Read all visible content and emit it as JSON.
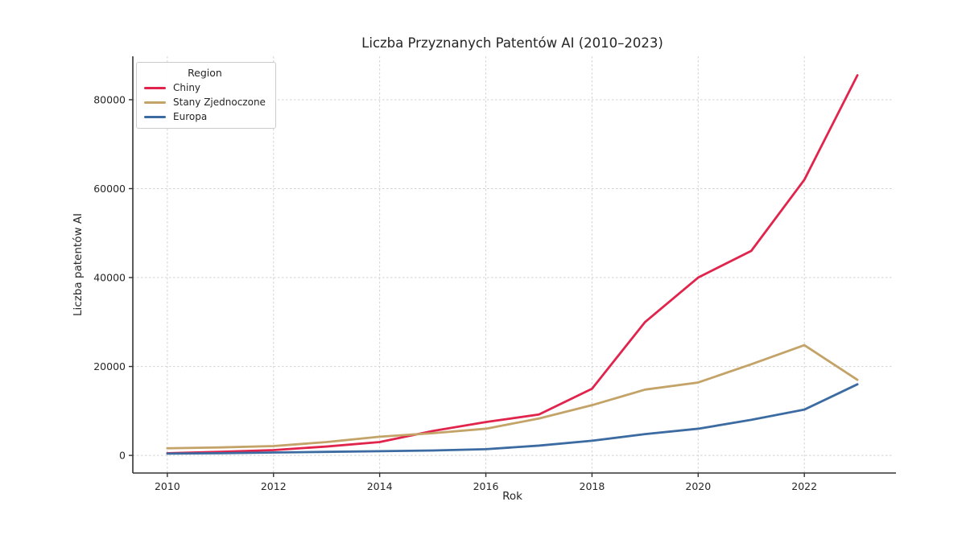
{
  "chart_data": {
    "type": "line",
    "title": "Liczba Przyznanych Patentów AI (2010–2023)",
    "xlabel": "Rok",
    "ylabel": "Liczba patentów AI",
    "legend_title": "Region",
    "legend_position": "upper left",
    "grid": true,
    "x": [
      2010,
      2011,
      2012,
      2013,
      2014,
      2015,
      2016,
      2017,
      2018,
      2019,
      2020,
      2021,
      2022,
      2023
    ],
    "series": [
      {
        "name": "Chiny",
        "color": "#e0244c",
        "values": [
          500,
          800,
          1200,
          2000,
          3000,
          5500,
          7500,
          9200,
          15000,
          30000,
          40000,
          46000,
          62000,
          85500
        ]
      },
      {
        "name": "Stany Zjednoczone",
        "color": "#c3a367",
        "values": [
          1600,
          1800,
          2100,
          3000,
          4200,
          5000,
          6000,
          8300,
          11300,
          14800,
          16400,
          20500,
          24800,
          17000
        ]
      },
      {
        "name": "Europa",
        "color": "#3c6ba2",
        "values": [
          400,
          500,
          650,
          800,
          950,
          1100,
          1400,
          2200,
          3300,
          4800,
          6000,
          8000,
          10300,
          16000
        ]
      }
    ],
    "xticks": [
      2010,
      2012,
      2014,
      2016,
      2018,
      2020,
      2022
    ],
    "yticks": [
      0,
      20000,
      40000,
      60000,
      80000
    ],
    "xlim": [
      2009.35,
      2023.65
    ],
    "ylim": [
      -3960,
      89760
    ]
  }
}
